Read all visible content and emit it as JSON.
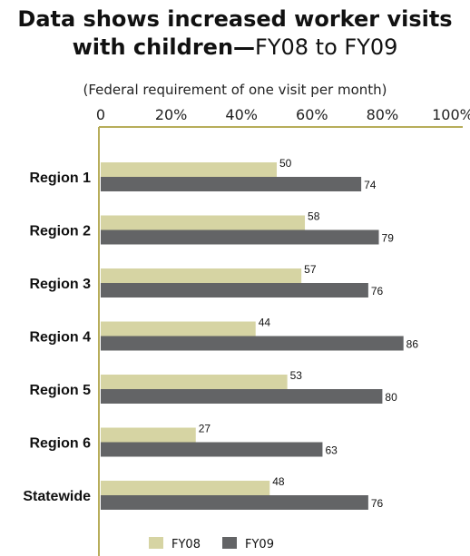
{
  "header": {
    "title_bold_1": "Data shows increased worker visits",
    "title_bold_2": "with children—",
    "title_light_2": "FY08 to FY09",
    "subtitle": "(Federal requirement of one visit per month)"
  },
  "chart_data": {
    "type": "bar",
    "orientation": "horizontal",
    "title": "Data shows increased worker visits with children—FY08 to FY09",
    "subtitle": "(Federal requirement of one visit per month)",
    "categories": [
      "Region 1",
      "Region 2",
      "Region 3",
      "Region 4",
      "Region 5",
      "Region 6",
      "Statewide"
    ],
    "series": [
      {
        "name": "FY08",
        "color": "#d6d4a3",
        "values": [
          50,
          58,
          57,
          44,
          53,
          27,
          48
        ]
      },
      {
        "name": "FY09",
        "color": "#636466",
        "values": [
          74,
          79,
          76,
          86,
          80,
          63,
          76
        ]
      }
    ],
    "xaxis": {
      "ticks": [
        "0",
        "20%",
        "40%",
        "60%",
        "80%",
        "100%"
      ],
      "tick_values": [
        0,
        20,
        40,
        60,
        80,
        100
      ],
      "position": "top"
    },
    "xlim": [
      0,
      100
    ],
    "axis_color": "#b7ad5a",
    "grid": false,
    "legend": {
      "position": "bottom",
      "entries": [
        "FY08",
        "FY09"
      ]
    }
  }
}
